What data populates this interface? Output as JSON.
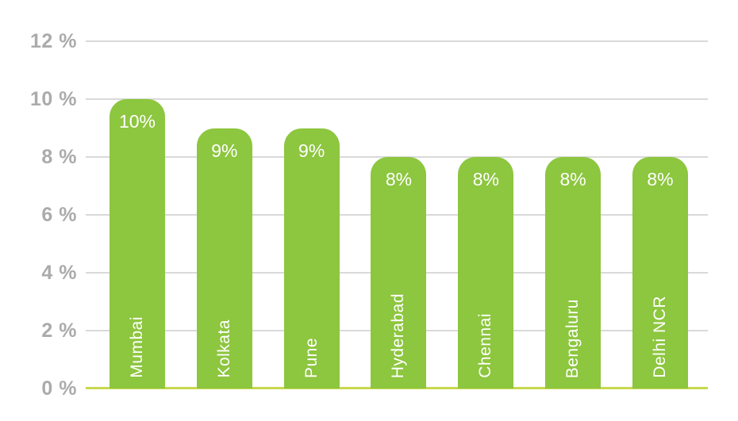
{
  "chart_data": {
    "type": "bar",
    "title": "",
    "xlabel": "",
    "ylabel": "",
    "categories": [
      "Mumbai",
      "Kolkata",
      "Pune",
      "Hyderabad",
      "Chennai",
      "Bengaluru",
      "Delhi NCR"
    ],
    "values": [
      10,
      9,
      9,
      8,
      8,
      8,
      8
    ],
    "bar_labels": [
      "10%",
      "9%",
      "9%",
      "8%",
      "8%",
      "8%",
      "8%"
    ],
    "y_ticks": [
      {
        "value": 12,
        "label": "12 %"
      },
      {
        "value": 10,
        "label": "10 %"
      },
      {
        "value": 8,
        "label": "8 %"
      },
      {
        "value": 6,
        "label": "6 %"
      },
      {
        "value": 4,
        "label": "4 %"
      },
      {
        "value": 2,
        "label": "2 %"
      },
      {
        "value": 0,
        "label": "0 %"
      }
    ],
    "ylim": [
      0,
      12
    ],
    "grid": true,
    "legend": false,
    "colors": {
      "bar": "#8DC63F",
      "bar_label_text": "#FFFFFF",
      "axis_tick_text": "#ABABAB",
      "gridline": "#D9D9D9",
      "baseline": "#C8D84F",
      "background": "#FFFFFF"
    }
  }
}
